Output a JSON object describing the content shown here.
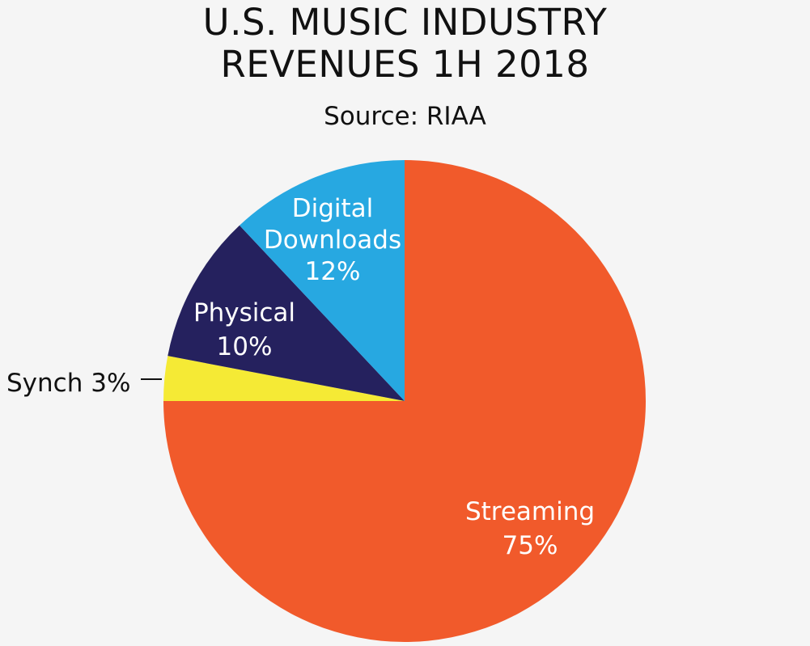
{
  "chart_data": {
    "type": "pie",
    "title_lines": [
      "U.S. MUSIC INDUSTRY",
      "REVENUES 1H 2018"
    ],
    "subtitle": "Source: RIAA",
    "slices": [
      {
        "name": "Streaming",
        "value": 75,
        "label_lines": [
          "Streaming",
          "75%"
        ],
        "color": "#f15a2b"
      },
      {
        "name": "Synch",
        "value": 3,
        "label_lines": [
          "Synch 3%"
        ],
        "color": "#f5ea35"
      },
      {
        "name": "Physical",
        "value": 10,
        "label_lines": [
          "Physical",
          "10%"
        ],
        "color": "#25215e"
      },
      {
        "name": "Digital Downloads",
        "value": 12,
        "label_lines": [
          "Digital",
          "Downloads",
          "12%"
        ],
        "color": "#27a8e1"
      }
    ]
  }
}
